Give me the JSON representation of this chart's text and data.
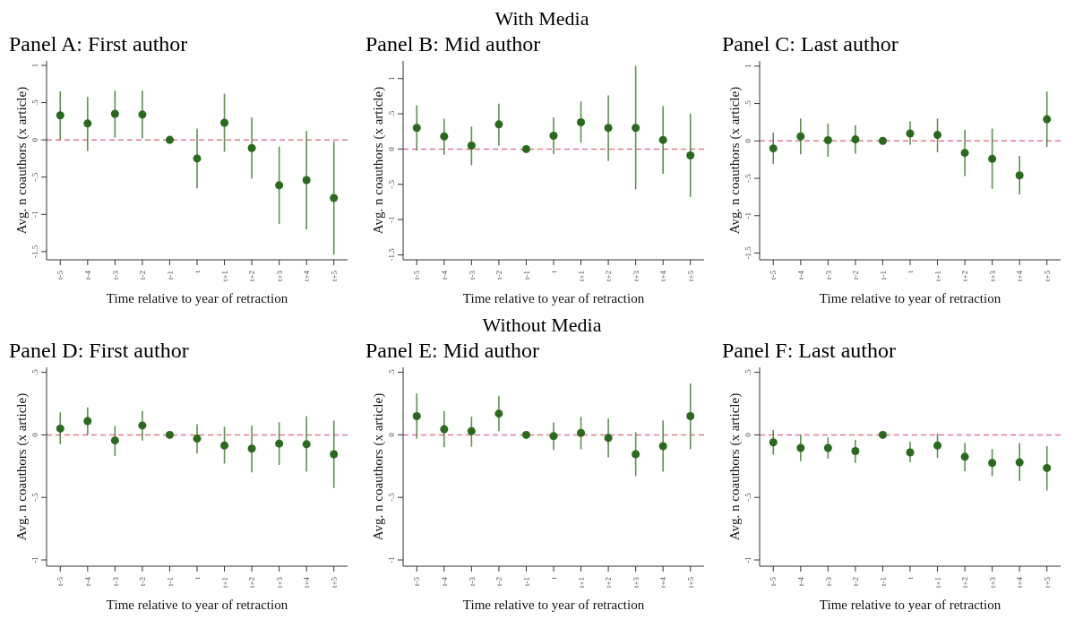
{
  "chart_data": [
    {
      "type": "scatter",
      "title": "Panel A: First author",
      "xlabel": "Time relative to year of retraction",
      "ylabel": "Avg. n coauthors (x article)",
      "categories": [
        "t-5",
        "t-4",
        "t-3",
        "t-2",
        "t-1",
        "t",
        "t+1",
        "t+2",
        "t+3",
        "t+4",
        "t+5"
      ],
      "color": "#2a6a1c",
      "marker": "circle",
      "values": [
        0.33,
        0.22,
        0.35,
        0.34,
        0,
        -0.25,
        0.23,
        -0.11,
        -0.61,
        -0.54,
        -0.78
      ],
      "errors": [
        [
          0.0,
          0.65
        ],
        [
          -0.15,
          0.58
        ],
        [
          0.03,
          0.66
        ],
        [
          0.02,
          0.66
        ],
        null,
        [
          -0.65,
          0.15
        ],
        [
          -0.16,
          0.62
        ],
        [
          -0.52,
          0.3
        ],
        [
          -1.13,
          -0.09
        ],
        [
          -1.2,
          0.12
        ],
        [
          -1.54,
          -0.02
        ]
      ],
      "ylim": [
        -1.61,
        1.06
      ],
      "yticks": [
        {
          "value": -1.5,
          "label": "-1.5"
        },
        -1,
        {
          "value": -0.5,
          "label": "-.5"
        },
        0,
        {
          "value": 0.5,
          "label": ".5"
        },
        1
      ],
      "ref_lines": [
        {
          "axis": "y",
          "value": 0,
          "color": "#e07b8a",
          "line_style": "dashed"
        }
      ]
    },
    {
      "type": "scatter",
      "subtitle": "With Media",
      "title": "Panel B: Mid author",
      "xlabel": "Time relative to year of retraction",
      "ylabel": "Avg. n coauthors (x article)",
      "categories": [
        "t-5",
        "t-4",
        "t-3",
        "t-2",
        "t-1",
        "t",
        "t+1",
        "t+2",
        "t+3",
        "t+4",
        "t+5"
      ],
      "color": "#2a6a1c",
      "marker": "circle",
      "values": [
        0.3,
        0.18,
        0.05,
        0.35,
        0,
        0.19,
        0.38,
        0.3,
        0.3,
        0.13,
        -0.09
      ],
      "errors": [
        [
          -0.02,
          0.62
        ],
        [
          -0.08,
          0.43
        ],
        [
          -0.23,
          0.32
        ],
        [
          0.05,
          0.645
        ],
        null,
        [
          -0.07,
          0.45
        ],
        [
          0.09,
          0.675
        ],
        [
          -0.17,
          0.76
        ],
        [
          -0.57,
          1.18
        ],
        [
          -0.35,
          0.61
        ],
        [
          -0.68,
          0.5
        ]
      ],
      "ylim": [
        -1.57,
        1.25
      ],
      "yticks": [
        {
          "value": -1.5,
          "label": "-1.5"
        },
        -1,
        {
          "value": -0.5,
          "label": "-.5"
        },
        0,
        {
          "value": 0.5,
          "label": ".5"
        },
        1
      ],
      "ref_lines": [
        {
          "axis": "y",
          "value": 0,
          "color": "#e07b8a",
          "line_style": "dashed"
        }
      ]
    },
    {
      "type": "scatter",
      "title": "Panel C: Last author",
      "xlabel": "Time relative to year of retraction",
      "ylabel": "Avg. n coauthors (x article)",
      "categories": [
        "t-5",
        "t-4",
        "t-3",
        "t-2",
        "t-1",
        "t",
        "t+1",
        "t+2",
        "t+3",
        "t+4",
        "t+5"
      ],
      "color": "#2a6a1c",
      "marker": "circle",
      "values": [
        -0.1,
        0.06,
        0.01,
        0.02,
        0,
        0.1,
        0.08,
        -0.16,
        -0.24,
        -0.46,
        0.29
      ],
      "errors": [
        [
          -0.31,
          0.11
        ],
        [
          -0.18,
          0.3
        ],
        [
          -0.21,
          0.23
        ],
        [
          -0.17,
          0.21
        ],
        null,
        [
          -0.05,
          0.26
        ],
        [
          -0.15,
          0.3
        ],
        [
          -0.47,
          0.15
        ],
        [
          -0.64,
          0.165
        ],
        [
          -0.715,
          -0.2
        ],
        [
          -0.08,
          0.66
        ]
      ],
      "ylim": [
        -1.59,
        1.07
      ],
      "yticks": [
        {
          "value": -1.5,
          "label": "-1.5"
        },
        -1,
        {
          "value": -0.5,
          "label": "-.5"
        },
        0,
        {
          "value": 0.5,
          "label": ".5"
        },
        1
      ],
      "ref_lines": [
        {
          "axis": "y",
          "value": 0,
          "color": "#e07b8a",
          "line_style": "dashed"
        }
      ]
    },
    {
      "type": "scatter",
      "title": "Panel D: First author",
      "xlabel": "Time relative to year of retraction",
      "ylabel": "Avg. n coauthors (x article)",
      "categories": [
        "t-5",
        "t-4",
        "t-3",
        "t-2",
        "t-1",
        "t",
        "t+1",
        "t+2",
        "t+3",
        "t+4",
        "t+5"
      ],
      "color": "#2a6a1c",
      "marker": "circle",
      "values": [
        0.05,
        0.11,
        -0.045,
        0.075,
        0,
        -0.03,
        -0.085,
        -0.11,
        -0.07,
        -0.075,
        -0.155
      ],
      "errors": [
        [
          -0.075,
          0.18
        ],
        [
          0.0,
          0.22
        ],
        [
          -0.17,
          0.07
        ],
        [
          -0.045,
          0.19
        ],
        null,
        [
          -0.15,
          0.085
        ],
        [
          -0.23,
          0.065
        ],
        [
          -0.3,
          0.075
        ],
        [
          -0.24,
          0.1
        ],
        [
          -0.295,
          0.15
        ],
        [
          -0.425,
          0.115
        ]
      ],
      "ylim": [
        -1.05,
        0.54
      ],
      "yticks": [
        -1,
        {
          "value": -0.5,
          "label": "-.5"
        },
        0,
        {
          "value": 0.5,
          "label": ".5"
        }
      ],
      "ref_lines": [
        {
          "axis": "y",
          "value": 0,
          "color": "#e07b8a",
          "line_style": "dashed"
        }
      ]
    },
    {
      "type": "scatter",
      "subtitle": "Without Media",
      "title": "Panel E: Mid author",
      "xlabel": "Time relative to year of retraction",
      "ylabel": "Avg. n coauthors (x article)",
      "categories": [
        "t-5",
        "t-4",
        "t-3",
        "t-2",
        "t-1",
        "t",
        "t+1",
        "t+2",
        "t+3",
        "t+4",
        "t+5"
      ],
      "color": "#2a6a1c",
      "marker": "circle",
      "values": [
        0.15,
        0.045,
        0.03,
        0.17,
        0,
        -0.01,
        0.015,
        -0.025,
        -0.155,
        -0.09,
        0.15
      ],
      "errors": [
        [
          -0.03,
          0.33
        ],
        [
          -0.1,
          0.19
        ],
        [
          -0.095,
          0.145
        ],
        [
          0.03,
          0.31
        ],
        null,
        [
          -0.12,
          0.1
        ],
        [
          -0.115,
          0.145
        ],
        [
          -0.18,
          0.13
        ],
        [
          -0.33,
          0.02
        ],
        [
          -0.295,
          0.115
        ],
        [
          -0.115,
          0.41
        ]
      ],
      "ylim": [
        -1.05,
        0.54
      ],
      "yticks": [
        -1,
        {
          "value": -0.5,
          "label": "-.5"
        },
        0,
        {
          "value": 0.5,
          "label": ".5"
        }
      ],
      "ref_lines": [
        {
          "axis": "y",
          "value": 0,
          "color": "#e07b8a",
          "line_style": "dashed"
        }
      ]
    },
    {
      "type": "scatter",
      "title": "Panel F: Last author",
      "xlabel": "Time relative to year of retraction",
      "ylabel": "Avg. n coauthors (x article)",
      "categories": [
        "t-5",
        "t-4",
        "t-3",
        "t-2",
        "t-1",
        "t",
        "t+1",
        "t+2",
        "t+3",
        "t+4",
        "t+5"
      ],
      "color": "#2a6a1c",
      "marker": "circle",
      "values": [
        -0.06,
        -0.105,
        -0.105,
        -0.13,
        0,
        -0.14,
        -0.085,
        -0.175,
        -0.225,
        -0.22,
        -0.265
      ],
      "errors": [
        [
          -0.16,
          0.04
        ],
        [
          -0.21,
          0.0
        ],
        [
          -0.19,
          -0.02
        ],
        [
          -0.225,
          -0.04
        ],
        null,
        [
          -0.22,
          -0.055
        ],
        [
          -0.185,
          0.01
        ],
        [
          -0.29,
          -0.065
        ],
        [
          -0.33,
          -0.115
        ],
        [
          -0.37,
          -0.065
        ],
        [
          -0.445,
          -0.09
        ]
      ],
      "ylim": [
        -1.05,
        0.54
      ],
      "yticks": [
        -1,
        {
          "value": -0.5,
          "label": "-.5"
        },
        0,
        {
          "value": 0.5,
          "label": ".5"
        }
      ],
      "ref_lines": [
        {
          "axis": "y",
          "value": 0,
          "color": "#e07b8a",
          "line_style": "dashed"
        }
      ]
    }
  ]
}
